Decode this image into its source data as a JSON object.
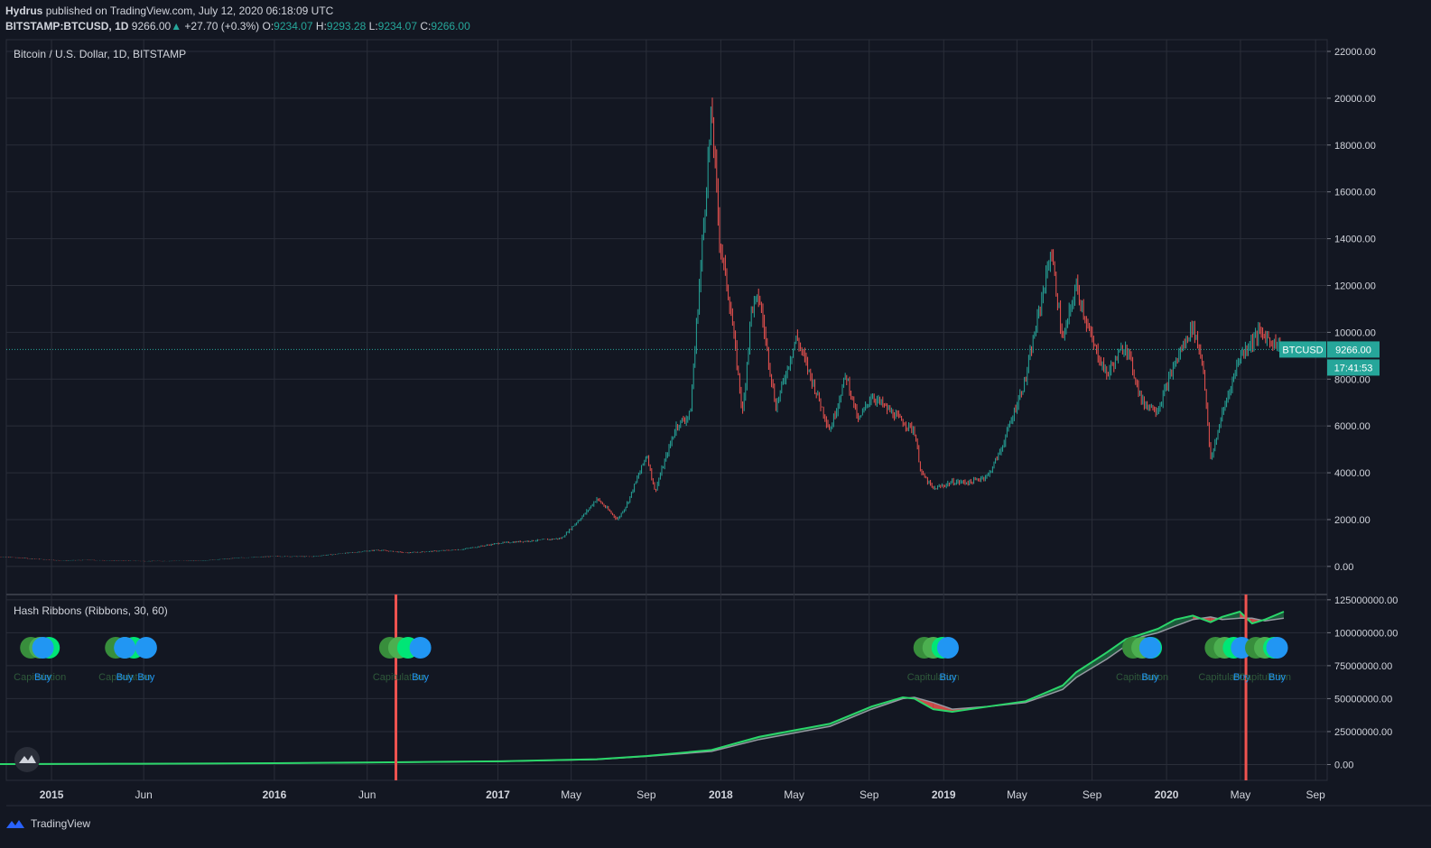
{
  "header": {
    "author": "Hydrus",
    "published_text": "published on TradingView.com, July 12, 2020 06:18:09 UTC",
    "symbol": "BITSTAMP:BTCUSD, 1D",
    "last": "9266.00",
    "change": "+27.70 (+0.3%)",
    "open_label": "O:",
    "open": "9234.07",
    "high_label": "H:",
    "high": "9293.28",
    "low_label": "L:",
    "low": "9234.07",
    "close_label": "C:",
    "close": "9266.00"
  },
  "colors": {
    "background": "#131722",
    "grid": "#2a2e39",
    "up": "#26a69a",
    "down": "#ef5350",
    "hash_fast": "#2bd66a",
    "hash_slow": "#9598a1",
    "buy": "#2196f3",
    "capitulation": "#4caf50",
    "vline": "#ef5350"
  },
  "chart_data": [
    {
      "type": "line",
      "title": "Bitcoin / U.S. Dollar, 1D, BITSTAMP",
      "ylim": [
        -1200,
        22500
      ],
      "y_ticks": [
        "22000.00",
        "20000.00",
        "18000.00",
        "16000.00",
        "14000.00",
        "12000.00",
        "10000.00",
        "8000.00",
        "6000.00",
        "4000.00",
        "2000.00",
        "0.00"
      ],
      "x_ticks": [
        "2015",
        "Jun",
        "2016",
        "Jun",
        "2017",
        "May",
        "Sep",
        "2018",
        "May",
        "Sep",
        "2019",
        "May",
        "Sep",
        "2020",
        "May",
        "Sep"
      ],
      "price_label": "BTCUSD",
      "price_value": "9266.00",
      "countdown": "17:41:53",
      "last_price": 9266,
      "series": [
        {
          "x": [
            "2014-09-20",
            "2014-11-01",
            "2015-01-15",
            "2015-03-01",
            "2015-06-01",
            "2015-09-01",
            "2015-11-05",
            "2016-01-01",
            "2016-03-01",
            "2016-06-18",
            "2016-08-05",
            "2016-11-01",
            "2017-01-05",
            "2017-03-01",
            "2017-04-15",
            "2017-05-25",
            "2017-06-12",
            "2017-07-16",
            "2017-08-01",
            "2017-09-02",
            "2017-09-15",
            "2017-10-20",
            "2017-11-12",
            "2017-12-17",
            "2017-12-30",
            "2018-01-17",
            "2018-02-06",
            "2018-02-20",
            "2018-03-05",
            "2018-04-01",
            "2018-05-05",
            "2018-06-29",
            "2018-07-25",
            "2018-08-14",
            "2018-09-05",
            "2018-10-15",
            "2018-11-14",
            "2018-11-25",
            "2018-12-15",
            "2019-01-15",
            "2019-02-15",
            "2019-03-15",
            "2019-04-05",
            "2019-05-15",
            "2019-06-26",
            "2019-07-15",
            "2019-08-06",
            "2019-09-01",
            "2019-09-25",
            "2019-10-26",
            "2019-11-22",
            "2019-12-18",
            "2020-01-15",
            "2020-02-13",
            "2020-03-01",
            "2020-03-13",
            "2020-04-01",
            "2020-04-30",
            "2020-06-01",
            "2020-07-11"
          ],
          "y": [
            420,
            380,
            250,
            270,
            225,
            235,
            370,
            430,
            420,
            700,
            580,
            720,
            1000,
            1100,
            1200,
            2300,
            2900,
            2000,
            2700,
            4800,
            3200,
            6000,
            6500,
            19500,
            14000,
            11000,
            6500,
            11000,
            11500,
            6800,
            9800,
            5800,
            8200,
            6200,
            7300,
            6400,
            5800,
            4000,
            3300,
            3600,
            3600,
            3900,
            5000,
            8000,
            13500,
            9600,
            12000,
            9600,
            8200,
            9500,
            7000,
            6700,
            8700,
            10300,
            8600,
            4500,
            6500,
            9000,
            10000,
            9266
          ]
        }
      ]
    },
    {
      "type": "line",
      "title": "Hash Ribbons (Ribbons, 30, 60)",
      "ylim": [
        -12000000,
        129000000
      ],
      "y_ticks": [
        "125000000.00",
        "100000000.00",
        "75000000.00",
        "50000000.00",
        "25000000.00",
        "0.00"
      ],
      "series": [
        {
          "name": "30",
          "x": [
            "2014-09-20",
            "2015-06-01",
            "2016-01-01",
            "2016-06-18",
            "2017-01-05",
            "2017-06-12",
            "2017-09-02",
            "2017-12-17",
            "2018-03-05",
            "2018-06-29",
            "2018-09-05",
            "2018-10-26",
            "2018-11-14",
            "2018-12-15",
            "2019-01-15",
            "2019-03-15",
            "2019-05-15",
            "2019-07-15",
            "2019-08-06",
            "2019-09-25",
            "2019-10-26",
            "2019-11-22",
            "2019-12-18",
            "2020-01-15",
            "2020-02-13",
            "2020-03-13",
            "2020-04-01",
            "2020-04-30",
            "2020-05-20",
            "2020-06-10",
            "2020-07-11"
          ],
          "y": [
            300000,
            600000,
            1000000,
            1600000,
            2500000,
            4000000,
            6500000,
            11000000,
            21000000,
            31000000,
            44000000,
            51000000,
            50000000,
            42000000,
            40000000,
            44000000,
            48000000,
            60000000,
            70000000,
            85000000,
            95000000,
            99000000,
            103000000,
            110000000,
            113000000,
            108000000,
            112000000,
            116000000,
            107000000,
            110000000,
            116000000
          ]
        },
        {
          "name": "60",
          "x": [
            "2014-09-20",
            "2015-06-01",
            "2016-01-01",
            "2016-06-18",
            "2017-01-05",
            "2017-06-12",
            "2017-09-02",
            "2017-12-17",
            "2018-03-05",
            "2018-06-29",
            "2018-09-05",
            "2018-10-26",
            "2018-11-14",
            "2018-12-15",
            "2019-01-15",
            "2019-03-15",
            "2019-05-15",
            "2019-07-15",
            "2019-08-06",
            "2019-09-25",
            "2019-10-26",
            "2019-11-22",
            "2019-12-18",
            "2020-01-15",
            "2020-02-13",
            "2020-03-13",
            "2020-04-01",
            "2020-04-30",
            "2020-05-20",
            "2020-06-10",
            "2020-07-11"
          ],
          "y": [
            290000,
            580000,
            980000,
            1550000,
            2400000,
            3800000,
            6200000,
            10000000,
            19000000,
            29000000,
            42000000,
            50000000,
            51000000,
            47000000,
            42000000,
            44000000,
            47000000,
            57000000,
            66000000,
            80000000,
            90000000,
            97000000,
            100000000,
            105000000,
            110000000,
            112000000,
            110000000,
            111000000,
            111000000,
            109000000,
            111000000
          ]
        }
      ],
      "vlines": [
        "2016-07-18",
        "2020-05-10"
      ],
      "signal_labels": [
        {
          "text": "Capitulation",
          "x": "2014-12-13",
          "kind": "capitulation"
        },
        {
          "text": "Buy",
          "x": "2014-12-18",
          "kind": "buy"
        },
        {
          "text": "Capitulation",
          "x": "2015-05-01",
          "kind": "capitulation"
        },
        {
          "text": "Buy",
          "x": "2015-05-01",
          "kind": "buy"
        },
        {
          "text": "Buy",
          "x": "2015-06-05",
          "kind": "buy"
        },
        {
          "text": "Capitulation",
          "x": "2016-07-23",
          "kind": "capitulation"
        },
        {
          "text": "Buy",
          "x": "2016-08-27",
          "kind": "buy"
        },
        {
          "text": "Capitulation",
          "x": "2018-12-15",
          "kind": "capitulation"
        },
        {
          "text": "Buy",
          "x": "2019-01-08",
          "kind": "buy"
        },
        {
          "text": "Capitulation",
          "x": "2019-11-22",
          "kind": "capitulation"
        },
        {
          "text": "Buy",
          "x": "2019-12-05",
          "kind": "buy"
        },
        {
          "text": "Capitulation",
          "x": "2020-04-05",
          "kind": "capitulation"
        },
        {
          "text": "Buy",
          "x": "2020-05-03",
          "kind": "buy"
        },
        {
          "text": "Capitulation",
          "x": "2020-06-10",
          "kind": "capitulation"
        },
        {
          "text": "Buy",
          "x": "2020-06-30",
          "kind": "buy"
        }
      ]
    }
  ],
  "footer": {
    "brand": "TradingView"
  }
}
